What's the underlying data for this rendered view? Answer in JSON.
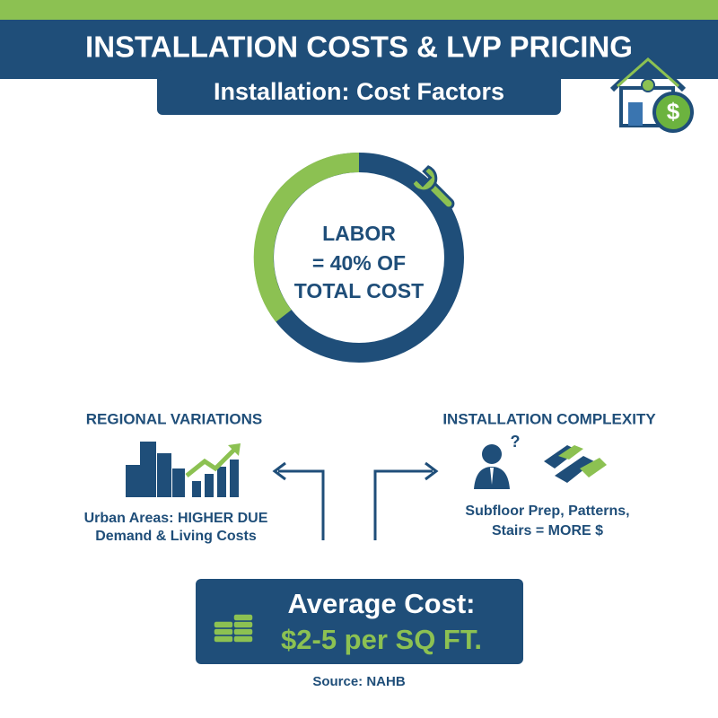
{
  "header": {
    "title": "INSTALLATION COSTS & LVP PRICING",
    "subtitle": "Installation: Cost Factors"
  },
  "donut": {
    "lines": [
      "LABOR",
      "= 40% OF",
      "TOTAL COST"
    ]
  },
  "regional": {
    "heading": "REGIONAL VARIATIONS",
    "lines": [
      "Urban Areas: HIGHER DUE",
      "Demand & Living Costs"
    ]
  },
  "complexity": {
    "heading": "INSTALLATION COMPLEXITY",
    "lines": [
      "Subfloor Prep, Patterns,",
      "Stairs = MORE $"
    ]
  },
  "average": {
    "label": "Average Cost:",
    "value": "$2-5 per SQ FT."
  },
  "source": "Source: NAHB"
}
